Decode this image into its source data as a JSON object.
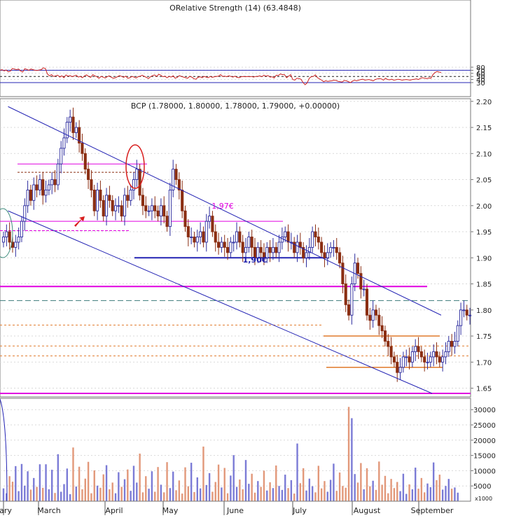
{
  "colors": {
    "up": "#2b2b9e",
    "down": "#8b2e12",
    "vol_up": "#7b7bd6",
    "vol_down": "#e2987a",
    "channel": "#2424b4",
    "magenta": "#e000e0",
    "orange": "#e07a2a",
    "rsi": "#cc2222",
    "circle": "#d81e1e"
  },
  "chart_data": [
    {
      "type": "line",
      "title": "ORelative Strength (14) (63.4848)",
      "series": [
        {
          "values": [
            70,
            72,
            68,
            71,
            65,
            67,
            76,
            74,
            72,
            74,
            68,
            64,
            75,
            73,
            70,
            74,
            72,
            70,
            69,
            71,
            72,
            78,
            76,
            58,
            52,
            56,
            50,
            52,
            54,
            48,
            52,
            46,
            55,
            51,
            53,
            49,
            52,
            54,
            48,
            50,
            46,
            52,
            55,
            50,
            47,
            56,
            52,
            49,
            44,
            50,
            48,
            45,
            49,
            52,
            47,
            44,
            46,
            49,
            53,
            50,
            47,
            51,
            44,
            46,
            50,
            48,
            45,
            49,
            51,
            54,
            50,
            47,
            43,
            49,
            53,
            55,
            50,
            57,
            54,
            49,
            51,
            46,
            50,
            48,
            52,
            44,
            47,
            53,
            50,
            48,
            46,
            44,
            50,
            48,
            43,
            41,
            47,
            49,
            46,
            50,
            48,
            46,
            50,
            47,
            49,
            50,
            51,
            56,
            50,
            51,
            49,
            52,
            50,
            48,
            51,
            47,
            46,
            49,
            50,
            49,
            50,
            49,
            50,
            48,
            50,
            50,
            52,
            49,
            54,
            51,
            53,
            48,
            49,
            45,
            54,
            53,
            58,
            56,
            56,
            46,
            51,
            56,
            40,
            38,
            44,
            43,
            41,
            30,
            23,
            29,
            44,
            49,
            50,
            55,
            46,
            42,
            38,
            33,
            36,
            34,
            35,
            36,
            38,
            37,
            34,
            33,
            32,
            37,
            36,
            33,
            30,
            35,
            38,
            36,
            38,
            40,
            41,
            38,
            39,
            40,
            38,
            36,
            40,
            42,
            43,
            42,
            38,
            44,
            40,
            39,
            41,
            38,
            39,
            41,
            40,
            38,
            39,
            40,
            39,
            38,
            40,
            41,
            42,
            40,
            44,
            46,
            44,
            43,
            45,
            44,
            56,
            63,
            66,
            64,
            63
          ]
        }
      ],
      "y_ticks": [
        "80",
        "70",
        "60",
        "50",
        "40",
        "30"
      ],
      "ylim": [
        20,
        83
      ],
      "reference_lines": [
        70,
        50,
        30
      ]
    },
    {
      "type": "candlestick",
      "title": "BCP (1.78000, 1.80000, 1.78000, 1.79000, +0.00000)",
      "y_ticks": [
        "2.20",
        "2.15",
        "2.10",
        "2.05",
        "2.00",
        "1.95",
        "1.90",
        "1.85",
        "1.80",
        "1.75",
        "1.70",
        "1.65"
      ],
      "ylim": [
        1.631,
        2.211
      ],
      "close": [
        1.94,
        1.95,
        1.93,
        1.92,
        1.93,
        1.94,
        1.97,
        2.0,
        2.03,
        2.01,
        2.04,
        2.03,
        2.05,
        2.02,
        2.03,
        2.04,
        2.05,
        2.04,
        2.08,
        2.11,
        2.13,
        2.16,
        2.17,
        2.14,
        2.15,
        2.12,
        2.1,
        2.07,
        2.05,
        2.03,
        1.99,
        2.03,
        2.01,
        1.98,
        2.02,
        2.01,
        1.99,
        2.0,
        2.0,
        1.98,
        2.02,
        2.01,
        2.03,
        2.05,
        2.07,
        2.02,
        2.0,
        1.99,
        1.99,
        2.0,
        1.99,
        1.98,
        2.0,
        1.98,
        1.96,
        2.03,
        2.07,
        2.05,
        2.03,
        1.99,
        1.96,
        1.94,
        1.94,
        1.93,
        1.94,
        1.95,
        1.93,
        1.97,
        1.98,
        1.95,
        1.93,
        1.92,
        1.93,
        1.92,
        1.91,
        1.93,
        1.93,
        1.95,
        1.93,
        1.91,
        1.92,
        1.94,
        1.92,
        1.9,
        1.92,
        1.91,
        1.9,
        1.92,
        1.91,
        1.92,
        1.91,
        1.93,
        1.94,
        1.95,
        1.93,
        1.93,
        1.91,
        1.93,
        1.92,
        1.9,
        1.91,
        1.92,
        1.95,
        1.94,
        1.93,
        1.91,
        1.9,
        1.91,
        1.92,
        1.92,
        1.91,
        1.89,
        1.85,
        1.81,
        1.79,
        1.85,
        1.89,
        1.87,
        1.84,
        1.84,
        1.79,
        1.78,
        1.8,
        1.79,
        1.77,
        1.76,
        1.74,
        1.73,
        1.71,
        1.7,
        1.68,
        1.69,
        1.71,
        1.71,
        1.7,
        1.72,
        1.73,
        1.72,
        1.71,
        1.7,
        1.7,
        1.71,
        1.72,
        1.71,
        1.7,
        1.71,
        1.72,
        1.74,
        1.73,
        1.74,
        1.77,
        1.8,
        1.8,
        1.79,
        1.79
      ],
      "reference_lines": [
        {
          "label": "",
          "value": 2.08
        },
        {
          "label": "",
          "value": 2.064
        },
        {
          "label": "1,97€",
          "value": 1.97
        },
        {
          "label": "",
          "value": 1.952
        },
        {
          "label": "1,90€",
          "value": 1.9
        },
        {
          "label": "",
          "value": 1.845
        },
        {
          "label": "",
          "value": 1.818
        },
        {
          "label": "",
          "value": 1.771
        },
        {
          "label": "",
          "value": 1.75
        },
        {
          "label": "",
          "value": 1.731
        },
        {
          "label": "",
          "value": 1.712
        },
        {
          "label": "",
          "value": 1.69
        },
        {
          "label": "",
          "value": 1.64
        }
      ],
      "channel": {
        "upper": [
          [
            1.5,
            2.19
          ],
          [
            144.5,
            1.79
          ]
        ],
        "lower": [
          [
            1.5,
            1.99
          ],
          [
            141.5,
            1.64
          ]
        ]
      }
    },
    {
      "type": "bar",
      "y_ticks": [
        "30000",
        "25000",
        "20000",
        "15000",
        "10000",
        "5000"
      ],
      "y_unit": "x1000",
      "ylim": [
        0,
        33200
      ],
      "values": [
        4200,
        2600,
        8200,
        6400,
        11500,
        3300,
        12200,
        5100,
        9800,
        3800,
        7600,
        4700,
        12100,
        4400,
        12100,
        3900,
        10300,
        2700,
        15400,
        3100,
        5600,
        10700,
        2300,
        17600,
        4800,
        11300,
        3900,
        7400,
        12900,
        2600,
        10100,
        5100,
        4400,
        8800,
        11800,
        3900,
        6100,
        2600,
        9500,
        4700,
        7200,
        10400,
        3400,
        11600,
        6100,
        15600,
        2900,
        8200,
        4100,
        9800,
        3100,
        11200,
        5400,
        2900,
        12800,
        4300,
        9700,
        3600,
        6800,
        2500,
        11100,
        4900,
        12600,
        3000,
        7800,
        4200,
        17900,
        5300,
        9200,
        3100,
        6300,
        12000,
        4500,
        10900,
        2600,
        8400,
        15100,
        4700,
        7100,
        3900,
        13500,
        5700,
        9000,
        2800,
        6600,
        4700,
        10000,
        3500,
        6200,
        4300,
        11700,
        5000,
        3700,
        8700,
        4300,
        6900,
        2500,
        18900,
        5900,
        10800,
        3500,
        7400,
        4900,
        2900,
        11600,
        4200,
        6600,
        3100,
        7000,
        12300,
        3400,
        9400,
        5000,
        4400,
        30900,
        27200,
        8900,
        6100,
        12500,
        3900,
        10800,
        4900,
        6700,
        3700,
        13000,
        5400,
        8300,
        2600,
        7300,
        4300,
        6300,
        3300,
        9000,
        2400,
        5500,
        3900,
        11000,
        4100,
        7600,
        2900,
        5800,
        4600,
        12700,
        6900,
        8700,
        3800,
        5000,
        7300,
        4100,
        4500,
        2800
      ]
    }
  ],
  "x_axis": {
    "months": [
      "ary",
      "March",
      "April",
      "May",
      "June",
      "July",
      "August",
      "September"
    ]
  }
}
